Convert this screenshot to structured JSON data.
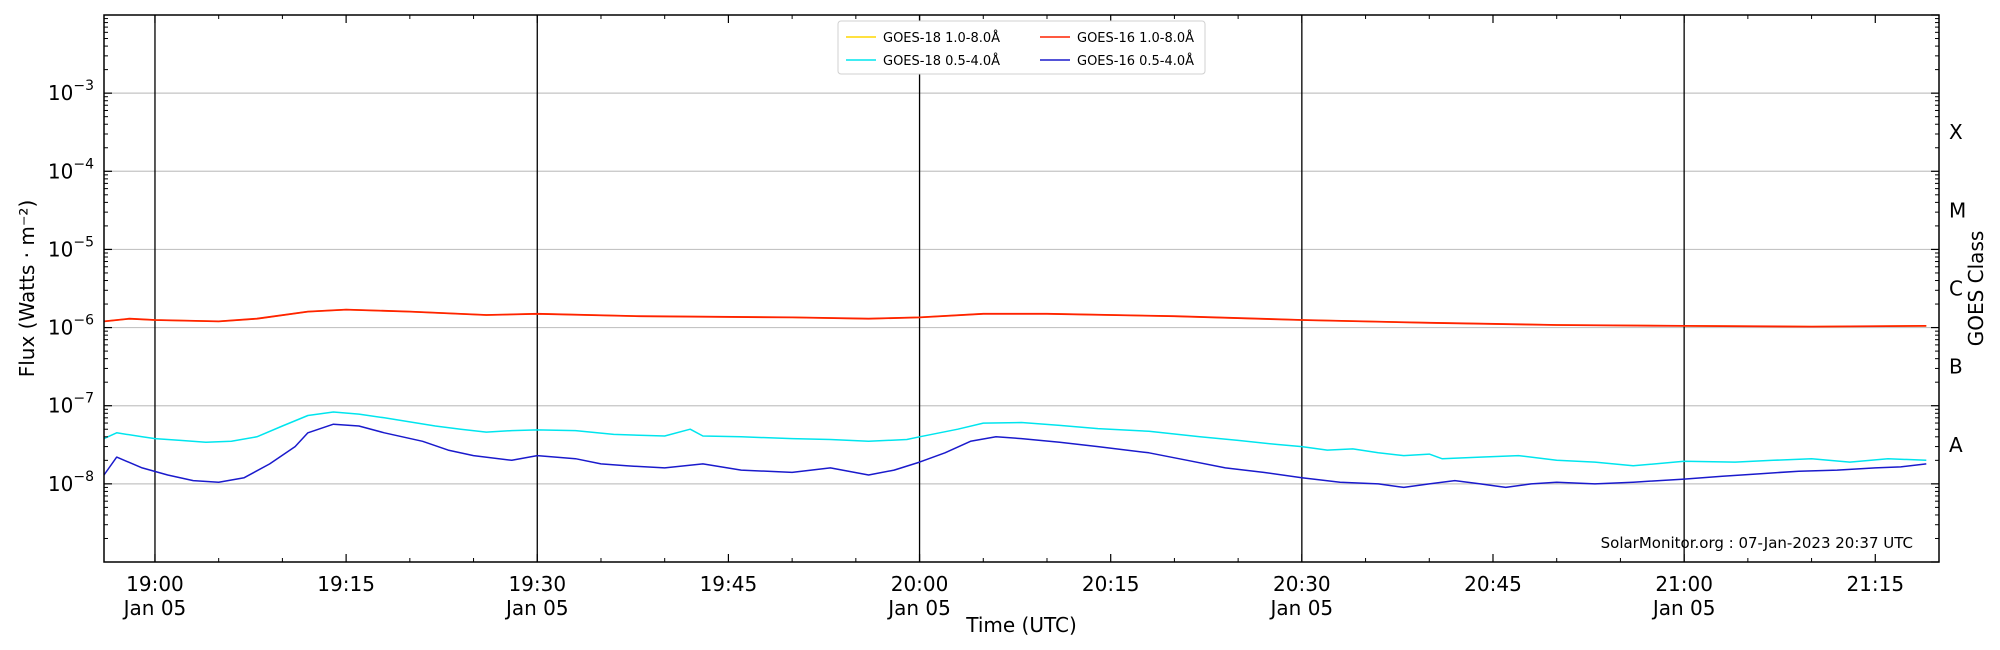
{
  "chart_data": {
    "type": "line",
    "title": "",
    "xlabel": "Time (UTC)",
    "ylabel": "Flux (Watts · m⁻²)",
    "ylabel_right": "GOES Class",
    "y_scale": "log",
    "ylim": [
      1e-09,
      0.01
    ],
    "xlim": [
      "18:56",
      "21:20"
    ],
    "grid": "horizontal lines at each decade; vertical lines every 30 minutes",
    "legend_placement": "top-center",
    "watermark": "SolarMonitor.org : 07-Jan-2023 20:37 UTC",
    "y_ticks": [
      {
        "value": 1e-08,
        "base": "10",
        "exp": "−8"
      },
      {
        "value": 1e-07,
        "base": "10",
        "exp": "−7"
      },
      {
        "value": 1e-06,
        "base": "10",
        "exp": "−6"
      },
      {
        "value": 1e-05,
        "base": "10",
        "exp": "−5"
      },
      {
        "value": 0.0001,
        "base": "10",
        "exp": "−4"
      },
      {
        "value": 0.001,
        "base": "10",
        "exp": "−3"
      }
    ],
    "x_ticks": [
      {
        "time": "19:00",
        "line1": "19:00",
        "line2": "Jan 05"
      },
      {
        "time": "19:15",
        "line1": "19:15",
        "line2": ""
      },
      {
        "time": "19:30",
        "line1": "19:30",
        "line2": "Jan 05"
      },
      {
        "time": "19:45",
        "line1": "19:45",
        "line2": ""
      },
      {
        "time": "20:00",
        "line1": "20:00",
        "line2": "Jan 05"
      },
      {
        "time": "20:15",
        "line1": "20:15",
        "line2": ""
      },
      {
        "time": "20:30",
        "line1": "20:30",
        "line2": "Jan 05"
      },
      {
        "time": "20:45",
        "line1": "20:45",
        "line2": ""
      },
      {
        "time": "21:00",
        "line1": "21:00",
        "line2": "Jan 05"
      },
      {
        "time": "21:15",
        "line1": "21:15",
        "line2": ""
      }
    ],
    "vertical_lines": [
      "19:00",
      "19:30",
      "20:00",
      "20:30",
      "21:00"
    ],
    "goes_classes": [
      {
        "label": "A",
        "value": 3.16e-08
      },
      {
        "label": "B",
        "value": 3.16e-07
      },
      {
        "label": "C",
        "value": 3.16e-06
      },
      {
        "label": "M",
        "value": 3.16e-05
      },
      {
        "label": "X",
        "value": 0.000316
      }
    ],
    "series": [
      {
        "name": "GOES-18 1.0-8.0Å",
        "color": "#ffd700",
        "points": [
          [
            "18:56",
            1.2e-06
          ],
          [
            "18:58",
            1.3e-06
          ],
          [
            "19:00",
            1.25e-06
          ],
          [
            "19:05",
            1.2e-06
          ],
          [
            "19:08",
            1.3e-06
          ],
          [
            "19:12",
            1.6e-06
          ],
          [
            "19:15",
            1.7e-06
          ],
          [
            "19:20",
            1.6e-06
          ],
          [
            "19:26",
            1.45e-06
          ],
          [
            "19:30",
            1.5e-06
          ],
          [
            "19:38",
            1.4e-06
          ],
          [
            "19:50",
            1.35e-06
          ],
          [
            "19:56",
            1.3e-06
          ],
          [
            "20:00",
            1.35e-06
          ],
          [
            "20:05",
            1.5e-06
          ],
          [
            "20:10",
            1.5e-06
          ],
          [
            "20:20",
            1.4e-06
          ],
          [
            "20:30",
            1.25e-06
          ],
          [
            "20:40",
            1.15e-06
          ],
          [
            "20:50",
            1.08e-06
          ],
          [
            "21:00",
            1.05e-06
          ],
          [
            "21:10",
            1.03e-06
          ],
          [
            "21:19",
            1.05e-06
          ]
        ]
      },
      {
        "name": "GOES-18 0.5-4.0Å",
        "color": "#00e5ee",
        "points": [
          [
            "18:56",
            3.8e-08
          ],
          [
            "18:57",
            4.5e-08
          ],
          [
            "18:59",
            4e-08
          ],
          [
            "19:00",
            3.8e-08
          ],
          [
            "19:02",
            3.6e-08
          ],
          [
            "19:04",
            3.4e-08
          ],
          [
            "19:06",
            3.5e-08
          ],
          [
            "19:08",
            4e-08
          ],
          [
            "19:10",
            5.5e-08
          ],
          [
            "19:12",
            7.5e-08
          ],
          [
            "19:14",
            8.3e-08
          ],
          [
            "19:16",
            7.8e-08
          ],
          [
            "19:18",
            7e-08
          ],
          [
            "19:20",
            6.2e-08
          ],
          [
            "19:22",
            5.5e-08
          ],
          [
            "19:24",
            5e-08
          ],
          [
            "19:26",
            4.6e-08
          ],
          [
            "19:28",
            4.8e-08
          ],
          [
            "19:30",
            4.9e-08
          ],
          [
            "19:33",
            4.8e-08
          ],
          [
            "19:36",
            4.3e-08
          ],
          [
            "19:40",
            4.1e-08
          ],
          [
            "19:42",
            5e-08
          ],
          [
            "19:43",
            4.1e-08
          ],
          [
            "19:46",
            4e-08
          ],
          [
            "19:50",
            3.8e-08
          ],
          [
            "19:53",
            3.7e-08
          ],
          [
            "19:56",
            3.5e-08
          ],
          [
            "19:59",
            3.7e-08
          ],
          [
            "20:00",
            4e-08
          ],
          [
            "20:03",
            5e-08
          ],
          [
            "20:05",
            6e-08
          ],
          [
            "20:08",
            6.1e-08
          ],
          [
            "20:11",
            5.6e-08
          ],
          [
            "20:14",
            5.1e-08
          ],
          [
            "20:18",
            4.7e-08
          ],
          [
            "20:22",
            4e-08
          ],
          [
            "20:25",
            3.6e-08
          ],
          [
            "20:28",
            3.2e-08
          ],
          [
            "20:30",
            3e-08
          ],
          [
            "20:32",
            2.7e-08
          ],
          [
            "20:34",
            2.8e-08
          ],
          [
            "20:36",
            2.5e-08
          ],
          [
            "20:38",
            2.3e-08
          ],
          [
            "20:40",
            2.4e-08
          ],
          [
            "20:41",
            2.1e-08
          ],
          [
            "20:44",
            2.2e-08
          ],
          [
            "20:47",
            2.3e-08
          ],
          [
            "20:50",
            2e-08
          ],
          [
            "20:53",
            1.9e-08
          ],
          [
            "20:56",
            1.7e-08
          ],
          [
            "21:00",
            1.95e-08
          ],
          [
            "21:04",
            1.9e-08
          ],
          [
            "21:07",
            2e-08
          ],
          [
            "21:10",
            2.1e-08
          ],
          [
            "21:13",
            1.9e-08
          ],
          [
            "21:16",
            2.1e-08
          ],
          [
            "21:19",
            2e-08
          ]
        ]
      },
      {
        "name": "GOES-16 1.0-8.0Å",
        "color": "#ff2200",
        "points": [
          [
            "18:56",
            1.2e-06
          ],
          [
            "18:58",
            1.3e-06
          ],
          [
            "19:00",
            1.25e-06
          ],
          [
            "19:05",
            1.2e-06
          ],
          [
            "19:08",
            1.3e-06
          ],
          [
            "19:12",
            1.6e-06
          ],
          [
            "19:15",
            1.7e-06
          ],
          [
            "19:20",
            1.6e-06
          ],
          [
            "19:26",
            1.45e-06
          ],
          [
            "19:30",
            1.5e-06
          ],
          [
            "19:38",
            1.4e-06
          ],
          [
            "19:50",
            1.35e-06
          ],
          [
            "19:56",
            1.3e-06
          ],
          [
            "20:00",
            1.35e-06
          ],
          [
            "20:05",
            1.5e-06
          ],
          [
            "20:10",
            1.5e-06
          ],
          [
            "20:20",
            1.4e-06
          ],
          [
            "20:30",
            1.25e-06
          ],
          [
            "20:40",
            1.15e-06
          ],
          [
            "20:50",
            1.08e-06
          ],
          [
            "21:00",
            1.05e-06
          ],
          [
            "21:10",
            1.03e-06
          ],
          [
            "21:19",
            1.05e-06
          ]
        ]
      },
      {
        "name": "GOES-16 0.5-4.0Å",
        "color": "#1a1acc",
        "points": [
          [
            "18:56",
            1.3e-08
          ],
          [
            "18:57",
            2.2e-08
          ],
          [
            "18:59",
            1.6e-08
          ],
          [
            "19:01",
            1.3e-08
          ],
          [
            "19:03",
            1.1e-08
          ],
          [
            "19:05",
            1.05e-08
          ],
          [
            "19:07",
            1.2e-08
          ],
          [
            "19:09",
            1.8e-08
          ],
          [
            "19:11",
            3e-08
          ],
          [
            "19:12",
            4.5e-08
          ],
          [
            "19:14",
            5.8e-08
          ],
          [
            "19:16",
            5.5e-08
          ],
          [
            "19:18",
            4.5e-08
          ],
          [
            "19:21",
            3.5e-08
          ],
          [
            "19:23",
            2.7e-08
          ],
          [
            "19:25",
            2.3e-08
          ],
          [
            "19:28",
            2e-08
          ],
          [
            "19:30",
            2.3e-08
          ],
          [
            "19:33",
            2.1e-08
          ],
          [
            "19:35",
            1.8e-08
          ],
          [
            "19:37",
            1.7e-08
          ],
          [
            "19:40",
            1.6e-08
          ],
          [
            "19:43",
            1.8e-08
          ],
          [
            "19:46",
            1.5e-08
          ],
          [
            "19:50",
            1.4e-08
          ],
          [
            "19:53",
            1.6e-08
          ],
          [
            "19:56",
            1.3e-08
          ],
          [
            "19:58",
            1.5e-08
          ],
          [
            "20:00",
            1.9e-08
          ],
          [
            "20:02",
            2.5e-08
          ],
          [
            "20:04",
            3.5e-08
          ],
          [
            "20:06",
            4e-08
          ],
          [
            "20:08",
            3.8e-08
          ],
          [
            "20:11",
            3.4e-08
          ],
          [
            "20:14",
            3e-08
          ],
          [
            "20:18",
            2.5e-08
          ],
          [
            "20:21",
            2e-08
          ],
          [
            "20:24",
            1.6e-08
          ],
          [
            "20:27",
            1.4e-08
          ],
          [
            "20:30",
            1.2e-08
          ],
          [
            "20:33",
            1.05e-08
          ],
          [
            "20:36",
            1e-08
          ],
          [
            "20:38",
            9e-09
          ],
          [
            "20:40",
            1e-08
          ],
          [
            "20:42",
            1.1e-08
          ],
          [
            "20:44",
            1e-08
          ],
          [
            "20:46",
            9e-09
          ],
          [
            "20:48",
            1e-08
          ],
          [
            "20:50",
            1.05e-08
          ],
          [
            "20:53",
            1e-08
          ],
          [
            "20:56",
            1.05e-08
          ],
          [
            "21:00",
            1.15e-08
          ],
          [
            "21:03",
            1.25e-08
          ],
          [
            "21:06",
            1.35e-08
          ],
          [
            "21:09",
            1.45e-08
          ],
          [
            "21:12",
            1.5e-08
          ],
          [
            "21:15",
            1.6e-08
          ],
          [
            "21:17",
            1.65e-08
          ],
          [
            "21:19",
            1.8e-08
          ]
        ]
      }
    ]
  }
}
